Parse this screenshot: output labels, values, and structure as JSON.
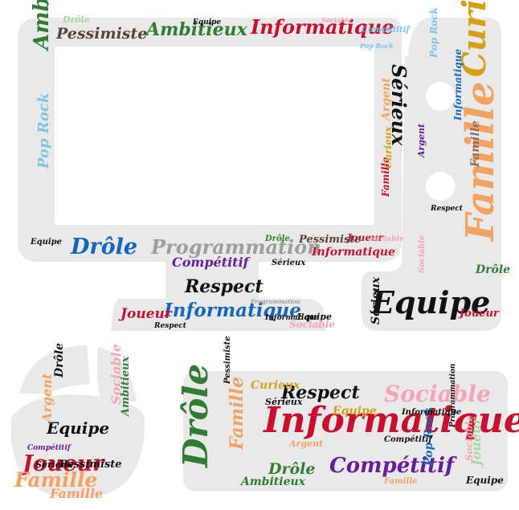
{
  "colors": {
    "background": "#ffffff",
    "shape_fill": "#e9e9e9",
    "palette": [
      "#111111",
      "#c8102e",
      "#2e7d32",
      "#1565c0",
      "#6a1b9a",
      "#f4a261",
      "#e76f51",
      "#7cc4e8",
      "#a8d8a0",
      "#f6a5b5",
      "#9e9e9e",
      "#5d4037",
      "#d4a017",
      "#8d6e63"
    ]
  },
  "monitor": {
    "words": [
      "Drôle",
      "Pessimiste",
      "Ambitieux",
      "Informatique",
      "Compétitif",
      "Sociable",
      "Equipe",
      "Pop Rock",
      "Sérieux",
      "Ambitieux",
      "Pop Rock",
      "Drôle",
      "Equipe",
      "Programmation",
      "Joueur",
      "Informatique",
      "Argent",
      "Famille",
      "Sociable",
      "Sérieux",
      "Respect",
      "Compétitif",
      "Informatique",
      "Pessimiste",
      "Respect",
      "Joueur",
      "Informatique",
      "Equipe",
      "Sociable",
      "Programmation",
      "Drôle",
      "Curieux"
    ]
  },
  "side_panel": {
    "words": [
      "Famille",
      "Curieux",
      "Equipe",
      "Sérieux",
      "Informatique",
      "Drôle",
      "Respect",
      "Joueur",
      "Pop Rock",
      "Argent",
      "Sociable",
      "Famille"
    ]
  },
  "mouse": {
    "words": [
      "Joueur",
      "Famille",
      "Equipe",
      "Argent",
      "Sérieux",
      "Pessimiste",
      "Ambitieux",
      "Sociable",
      "Drôle",
      "Compétitif",
      "Famille"
    ]
  },
  "keyboard": {
    "words": [
      "Informatique",
      "Respect",
      "Sociable",
      "Drôle",
      "Compétitif",
      "Curieux",
      "Sérieux",
      "Famille",
      "Argent",
      "Equipe",
      "Drôle",
      "Programmation",
      "Pessimiste",
      "Ambitieux",
      "Pop Rock",
      "Joueur",
      "Compétitif",
      "Informatique",
      "Sociable",
      "Famille",
      "Equipe"
    ]
  }
}
